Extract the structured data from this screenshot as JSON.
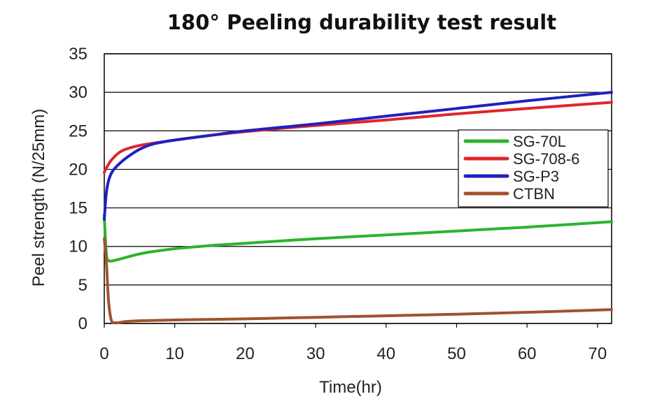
{
  "chart_data": {
    "type": "line",
    "title": "180° Peeling durability test result",
    "xlabel": "Time(hr)",
    "ylabel": "Peel strength (N/25mm)",
    "xlim": [
      0,
      72
    ],
    "ylim": [
      0,
      35
    ],
    "xticks": [
      0,
      10,
      20,
      30,
      40,
      50,
      60,
      70
    ],
    "yticks": [
      0,
      5,
      10,
      15,
      20,
      25,
      30,
      35
    ],
    "grid": "horizontal",
    "legend_position": "right",
    "series": [
      {
        "name": "SG-70L",
        "color": "#2ab52a",
        "x": [
          0,
          0.3,
          0.6,
          1,
          2,
          4,
          6,
          10,
          15,
          20,
          30,
          40,
          50,
          60,
          72
        ],
        "y": [
          14,
          9,
          8.2,
          8.1,
          8.3,
          8.8,
          9.2,
          9.7,
          10.1,
          10.4,
          11.0,
          11.5,
          12.0,
          12.5,
          13.2
        ]
      },
      {
        "name": "SG-708-6",
        "color": "#e0262b",
        "x": [
          0,
          0.2,
          0.5,
          1,
          2,
          3,
          5,
          7,
          10,
          15,
          20,
          30,
          40,
          50,
          60,
          72
        ],
        "y": [
          19.6,
          20,
          20.5,
          21.2,
          22.1,
          22.6,
          23.1,
          23.4,
          23.8,
          24.4,
          24.9,
          25.7,
          26.4,
          27.2,
          27.9,
          28.7
        ]
      },
      {
        "name": "SG-P3",
        "color": "#2020c0",
        "x": [
          0,
          0.3,
          0.7,
          1.2,
          2,
          3,
          5,
          7,
          10,
          15,
          20,
          30,
          40,
          50,
          60,
          72
        ],
        "y": [
          13.5,
          17,
          18.8,
          19.8,
          20.6,
          21.4,
          22.6,
          23.3,
          23.8,
          24.4,
          25.0,
          25.9,
          26.9,
          27.9,
          28.9,
          30.0
        ]
      },
      {
        "name": "CTBN",
        "color": "#a0522d",
        "x": [
          0,
          0.3,
          0.6,
          1,
          1.5,
          2,
          3,
          5,
          10,
          20,
          30,
          40,
          50,
          60,
          72
        ],
        "y": [
          11,
          8,
          3,
          0.4,
          0.1,
          0.1,
          0.25,
          0.35,
          0.45,
          0.6,
          0.8,
          1.0,
          1.2,
          1.45,
          1.8
        ]
      }
    ]
  }
}
